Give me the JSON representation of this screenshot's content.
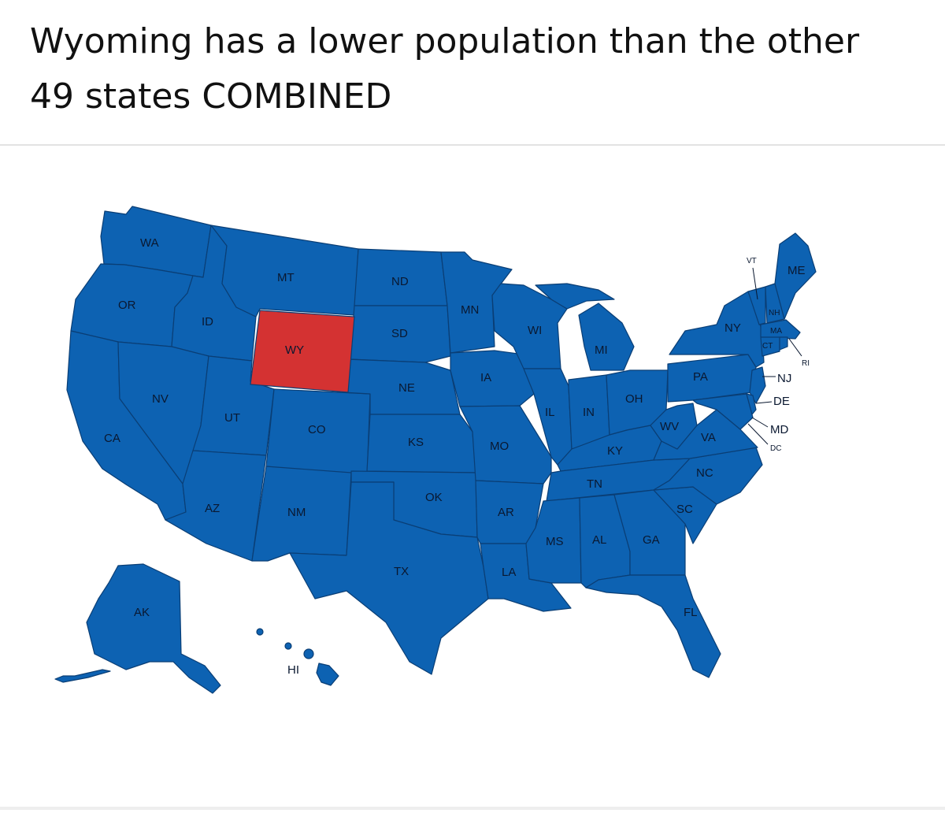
{
  "post": {
    "title_line1": "Wyoming has a lower population than the other",
    "title_line2": "49 states COMBINED"
  },
  "map": {
    "colors": {
      "other_states": "#0d62b2",
      "highlighted_state": "#d43232",
      "borders": "#0a3e75"
    },
    "highlighted": "WY",
    "labels": {
      "WA": "WA",
      "OR": "OR",
      "CA": "CA",
      "ID": "ID",
      "NV": "NV",
      "MT": "MT",
      "WY": "WY",
      "UT": "UT",
      "AZ": "AZ",
      "CO": "CO",
      "NM": "NM",
      "ND": "ND",
      "SD": "SD",
      "NE": "NE",
      "KS": "KS",
      "OK": "OK",
      "TX": "TX",
      "MN": "MN",
      "IA": "IA",
      "MO": "MO",
      "AR": "AR",
      "LA": "LA",
      "WI": "WI",
      "IL": "IL",
      "MI": "MI",
      "IN": "IN",
      "OH": "OH",
      "KY": "KY",
      "TN": "TN",
      "MS": "MS",
      "AL": "AL",
      "GA": "GA",
      "FL": "FL",
      "SC": "SC",
      "NC": "NC",
      "VA": "VA",
      "WV": "WV",
      "PA": "PA",
      "NY": "NY",
      "VT": "VT",
      "NH": "NH",
      "ME": "ME",
      "MA": "MA",
      "CT": "CT",
      "RI": "RI",
      "NJ": "NJ",
      "DE": "DE",
      "MD": "MD",
      "DC": "DC",
      "AK": "AK",
      "HI": "HI"
    }
  }
}
